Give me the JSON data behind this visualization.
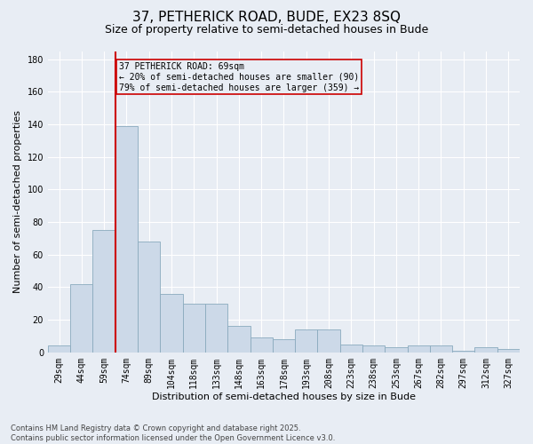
{
  "title": "37, PETHERICK ROAD, BUDE, EX23 8SQ",
  "subtitle": "Size of property relative to semi-detached houses in Bude",
  "xlabel": "Distribution of semi-detached houses by size in Bude",
  "ylabel": "Number of semi-detached properties",
  "categories": [
    "29sqm",
    "44sqm",
    "59sqm",
    "74sqm",
    "89sqm",
    "104sqm",
    "118sqm",
    "133sqm",
    "148sqm",
    "163sqm",
    "178sqm",
    "193sqm",
    "208sqm",
    "223sqm",
    "238sqm",
    "253sqm",
    "267sqm",
    "282sqm",
    "297sqm",
    "312sqm",
    "327sqm"
  ],
  "values": [
    4,
    42,
    75,
    139,
    68,
    36,
    30,
    30,
    16,
    9,
    8,
    14,
    14,
    5,
    4,
    3,
    4,
    4,
    1,
    3,
    2
  ],
  "bar_color": "#ccd9e8",
  "bar_edge_color": "#8aaabe",
  "background_color": "#e8edf4",
  "grid_color": "#ffffff",
  "vline_color": "#cc0000",
  "annotation_title": "37 PETHERICK ROAD: 69sqm",
  "annotation_line1": "← 20% of semi-detached houses are smaller (90)",
  "annotation_line2": "79% of semi-detached houses are larger (359) →",
  "annotation_box_color": "#cc0000",
  "footnote1": "Contains HM Land Registry data © Crown copyright and database right 2025.",
  "footnote2": "Contains public sector information licensed under the Open Government Licence v3.0.",
  "ylim": [
    0,
    185
  ],
  "yticks": [
    0,
    20,
    40,
    60,
    80,
    100,
    120,
    140,
    160,
    180
  ],
  "title_fontsize": 11,
  "subtitle_fontsize": 9,
  "ylabel_fontsize": 8,
  "xlabel_fontsize": 8,
  "tick_fontsize": 7,
  "annotation_fontsize": 7,
  "footnote_fontsize": 6
}
